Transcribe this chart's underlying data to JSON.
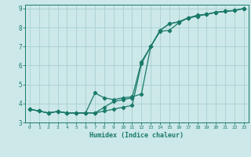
{
  "xlabel": "Humidex (Indice chaleur)",
  "bg_color": "#cce8e8",
  "grid_color": "#aacfcf",
  "line_color": "#1a7a6a",
  "xlim": [
    -0.5,
    23.5
  ],
  "ylim": [
    3,
    9.2
  ],
  "xticks": [
    0,
    1,
    2,
    3,
    4,
    5,
    6,
    7,
    8,
    9,
    10,
    11,
    12,
    13,
    14,
    15,
    16,
    17,
    18,
    19,
    20,
    21,
    22,
    23
  ],
  "yticks": [
    3,
    4,
    5,
    6,
    7,
    8,
    9
  ],
  "line1_x": [
    0,
    1,
    2,
    3,
    4,
    5,
    6,
    7,
    8,
    9,
    10,
    11,
    12,
    13,
    14,
    15,
    16,
    17,
    18,
    19,
    20,
    21,
    22,
    23
  ],
  "line1_y": [
    3.7,
    3.6,
    3.5,
    3.58,
    3.5,
    3.5,
    3.5,
    3.5,
    3.8,
    4.1,
    4.2,
    4.3,
    6.2,
    7.0,
    7.85,
    8.2,
    8.3,
    8.5,
    8.6,
    8.7,
    8.8,
    8.85,
    8.9,
    9.0
  ],
  "line2_x": [
    0,
    1,
    2,
    3,
    4,
    5,
    6,
    7,
    8,
    9,
    10,
    11,
    12,
    13,
    14,
    15,
    16,
    17,
    18,
    19,
    20,
    21,
    22,
    23
  ],
  "line2_y": [
    3.7,
    3.6,
    3.5,
    3.58,
    3.5,
    3.5,
    3.5,
    4.55,
    4.3,
    4.2,
    4.3,
    4.35,
    4.5,
    7.0,
    7.8,
    7.85,
    8.25,
    8.5,
    8.65,
    8.7,
    8.8,
    8.85,
    8.9,
    9.0
  ],
  "line3_x": [
    0,
    1,
    2,
    3,
    4,
    5,
    6,
    7,
    8,
    9,
    10,
    11,
    12,
    13,
    14,
    15,
    16,
    17,
    18,
    19,
    20,
    21,
    22,
    23
  ],
  "line3_y": [
    3.7,
    3.6,
    3.5,
    3.58,
    3.5,
    3.5,
    3.5,
    3.5,
    3.6,
    3.7,
    3.8,
    3.9,
    6.1,
    7.0,
    7.85,
    8.2,
    8.3,
    8.5,
    8.6,
    8.7,
    8.8,
    8.85,
    8.9,
    9.0
  ]
}
